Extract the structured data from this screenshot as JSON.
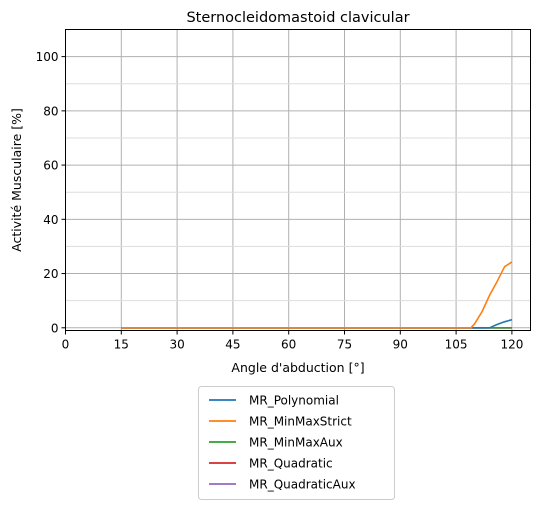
{
  "chart_data": {
    "type": "line",
    "title": "Sternocleidomastoid clavicular",
    "xlabel": "Angle d'abduction [°]",
    "ylabel": "Activité Musculaire [%]",
    "xlim": [
      0,
      125
    ],
    "ylim": [
      -1,
      110
    ],
    "xticks": [
      0,
      15,
      30,
      45,
      60,
      75,
      90,
      105,
      120
    ],
    "yticks": [
      0,
      20,
      40,
      60,
      80,
      100
    ],
    "grid": true,
    "legend_position": "below",
    "series": [
      {
        "name": "MR_Polynomial",
        "color": "#1f77b4",
        "x": [
          15,
          30,
          45,
          60,
          75,
          90,
          105,
          114,
          116,
          118,
          120
        ],
        "y": [
          0,
          0,
          0,
          0,
          0,
          0,
          0,
          0,
          1.2,
          2.2,
          3.0
        ]
      },
      {
        "name": "MR_MinMaxStrict",
        "color": "#ff7f0e",
        "x": [
          15,
          30,
          45,
          60,
          75,
          90,
          105,
          109,
          110,
          112,
          114,
          116,
          118,
          120
        ],
        "y": [
          0,
          0,
          0,
          0,
          0,
          0,
          0,
          0,
          1.5,
          6,
          12,
          17,
          22.5,
          24.3
        ]
      },
      {
        "name": "MR_MinMaxAux",
        "color": "#2ca02c",
        "x": [
          15,
          30,
          45,
          60,
          75,
          90,
          105,
          120
        ],
        "y": [
          0,
          0,
          0,
          0,
          0,
          0,
          0,
          0
        ]
      },
      {
        "name": "MR_Quadratic",
        "color": "#d62728",
        "x": [
          15,
          30,
          45,
          60,
          75,
          90,
          105,
          120
        ],
        "y": [
          0,
          0,
          0,
          0,
          0,
          0,
          0,
          0
        ]
      },
      {
        "name": "MR_QuadraticAux",
        "color": "#9467bd",
        "x": [
          15,
          30,
          45,
          60,
          75,
          90,
          105,
          120
        ],
        "y": [
          0,
          0,
          0,
          0,
          0,
          0,
          0,
          0
        ]
      }
    ]
  }
}
